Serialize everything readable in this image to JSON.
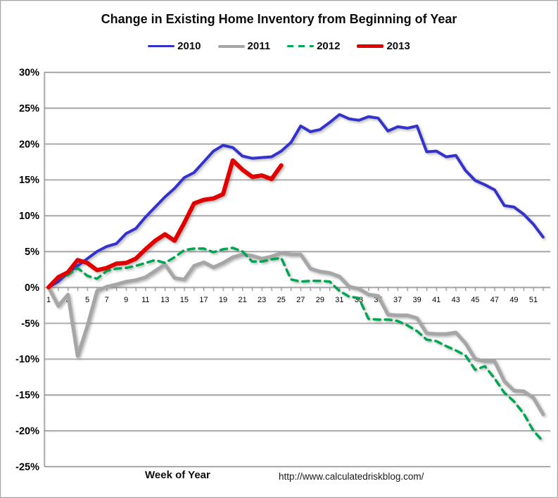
{
  "title": "Change in Existing Home Inventory from Beginning of Year",
  "footer": {
    "url": "http://www.calculatedriskblog.com/"
  },
  "colors": {
    "blue_2010": "#3333cc",
    "gray_2011": "#a6a6a6",
    "green_2012": "#00a551",
    "red_2013": "#e00000",
    "gridline": "#8c8c8c",
    "text": "#000000"
  },
  "chart_data": {
    "type": "line",
    "title": "Change in Existing Home Inventory from Beginning of Year",
    "xlabel": "Week of Year",
    "ylabel": "",
    "grid": true,
    "legend_position": "top",
    "x_axis": {
      "min": 1,
      "max": 52,
      "tick_labels": [
        1,
        3,
        5,
        7,
        9,
        11,
        13,
        15,
        17,
        19,
        21,
        23,
        25,
        27,
        29,
        31,
        33,
        35,
        37,
        39,
        41,
        43,
        45,
        47,
        49,
        51
      ]
    },
    "y_axis": {
      "unit": "%",
      "min": -25,
      "max": 30,
      "tick_step": 5,
      "tick_labels": [
        "30%",
        "25%",
        "20%",
        "15%",
        "10%",
        "5%",
        "0%",
        "-5%",
        "-10%",
        "-15%",
        "-20%",
        "-25%"
      ]
    },
    "series": [
      {
        "name": "2010",
        "color": "#3333cc",
        "style": "solid",
        "width": 4,
        "values": [
          0,
          0.8,
          2.0,
          3.0,
          4.0,
          5.0,
          5.7,
          6.1,
          7.5,
          8.2,
          9.8,
          11.2,
          12.6,
          13.8,
          15.3,
          16.0,
          17.5,
          19.0,
          19.8,
          19.5,
          18.3,
          18.0,
          18.1,
          18.2,
          19.0,
          20.2,
          22.5,
          21.7,
          22.0,
          23.0,
          24.1,
          23.5,
          23.3,
          23.8,
          23.6,
          21.8,
          22.4,
          22.2,
          22.5,
          18.9,
          19.0,
          18.2,
          18.4,
          16.3,
          14.9,
          14.3,
          13.6,
          11.4,
          11.2,
          10.2,
          8.8,
          7.0
        ]
      },
      {
        "name": "2011",
        "color": "#a6a6a6",
        "style": "solid",
        "width": 5,
        "values": [
          0,
          -2.6,
          -1.0,
          -9.6,
          -5.4,
          -0.5,
          0.1,
          0.4,
          0.8,
          1.0,
          1.4,
          2.3,
          3.2,
          1.3,
          1.1,
          3.0,
          3.5,
          2.8,
          3.4,
          4.2,
          4.6,
          4.4,
          4.0,
          4.3,
          4.8,
          4.6,
          4.6,
          2.6,
          2.2,
          2.0,
          1.5,
          0.1,
          -0.2,
          -1.0,
          -1.2,
          -3.8,
          -3.9,
          -3.9,
          -4.3,
          -6.4,
          -6.5,
          -6.5,
          -6.3,
          -7.8,
          -10.0,
          -10.3,
          -10.3,
          -13.1,
          -14.4,
          -14.5,
          -15.4,
          -17.7
        ]
      },
      {
        "name": "2012",
        "color": "#00a551",
        "style": "dashed",
        "width": 3.5,
        "values": [
          0,
          1.3,
          1.7,
          2.7,
          1.6,
          1.2,
          2.3,
          2.6,
          2.7,
          3.0,
          3.4,
          3.8,
          3.4,
          4.2,
          5.2,
          5.4,
          5.4,
          4.9,
          5.3,
          5.5,
          5.0,
          3.6,
          3.6,
          3.9,
          4.1,
          1.1,
          0.8,
          0.9,
          0.9,
          0.8,
          -0.5,
          -1.3,
          -1.5,
          -4.4,
          -4.5,
          -4.5,
          -4.7,
          -5.3,
          -6.1,
          -7.3,
          -7.5,
          -8.2,
          -8.8,
          -9.5,
          -11.5,
          -11.0,
          -12.7,
          -14.7,
          -15.9,
          -17.6,
          -20.0,
          -21.5
        ]
      },
      {
        "name": "2013",
        "color": "#e00000",
        "style": "solid",
        "width": 6,
        "values": [
          0,
          1.4,
          2.1,
          3.8,
          3.4,
          2.4,
          2.7,
          3.3,
          3.4,
          4.0,
          5.3,
          6.5,
          7.4,
          6.5,
          9.0,
          11.7,
          12.2,
          12.4,
          13.0,
          17.7,
          16.4,
          15.4,
          15.6,
          15.1,
          17.0
        ]
      }
    ]
  }
}
